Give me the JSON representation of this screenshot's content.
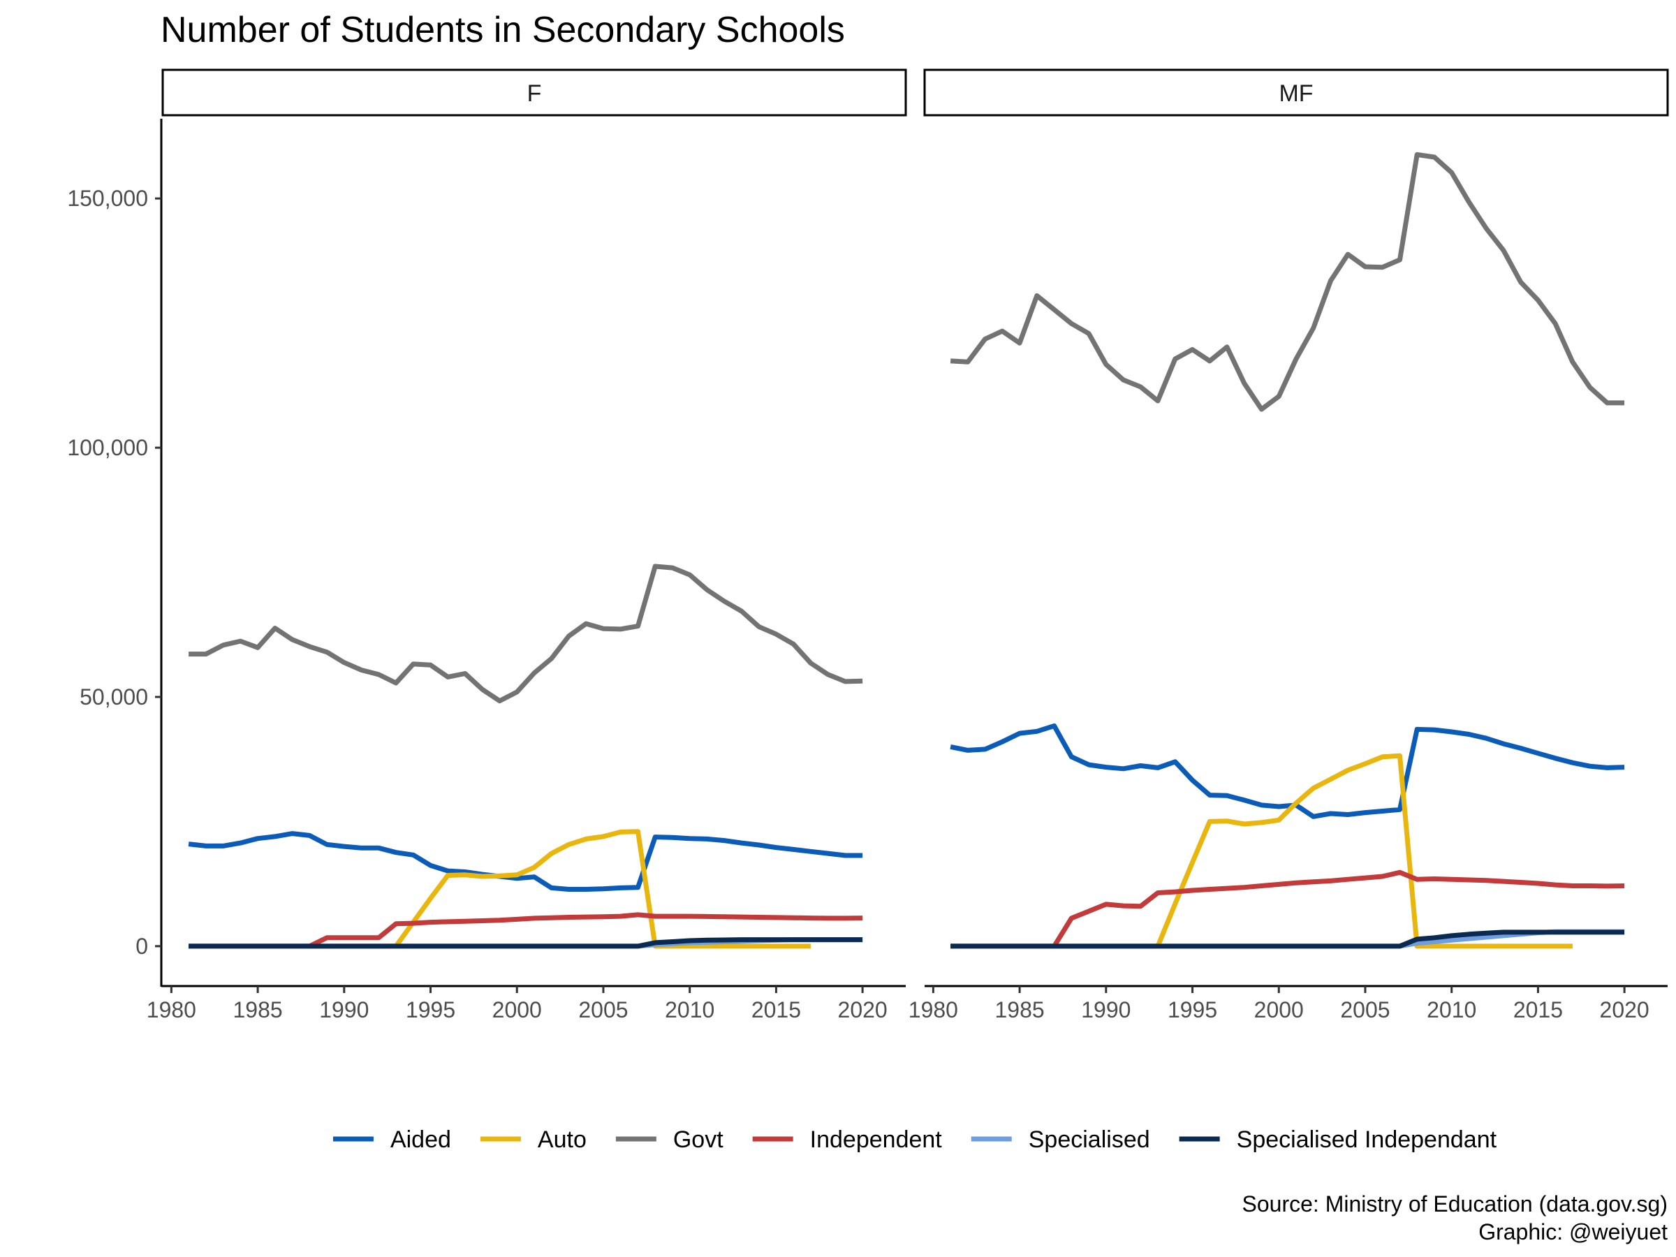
{
  "chart_data": {
    "type": "line",
    "title": "Number of Students in Secondary Schools",
    "xlabel": "",
    "ylabel": "",
    "xlim": [
      1979.5,
      2022.5
    ],
    "ylim": [
      -8000,
      166000
    ],
    "x_ticks": [
      1980,
      1985,
      1990,
      1995,
      2000,
      2005,
      2010,
      2015,
      2020
    ],
    "x_tick_labels": [
      "1980",
      "1985",
      "1990",
      "1995",
      "2000",
      "2005",
      "2010",
      "2015",
      "2020"
    ],
    "y_ticks": [
      0,
      50000,
      100000,
      150000
    ],
    "y_tick_labels": [
      "0",
      "50,000",
      "100,000",
      "150,000"
    ],
    "grid": false,
    "legend_position": "bottom",
    "caption": [
      "Source: Ministry of Education (data.gov.sg)",
      "Graphic: @weiyuet"
    ],
    "facets": [
      "F",
      "MF"
    ],
    "series": [
      {
        "name": "Aided",
        "color": "#0b5cb8",
        "F": {
          "x": [
            1981,
            1982,
            1983,
            1984,
            1985,
            1986,
            1987,
            1988,
            1989,
            1990,
            1991,
            1992,
            1993,
            1994,
            1995,
            1996,
            1997,
            1998,
            1999,
            2000,
            2001,
            2002,
            2003,
            2004,
            2005,
            2006,
            2007,
            2008,
            2009,
            2010,
            2011,
            2012,
            2013,
            2014,
            2015,
            2016,
            2017,
            2018,
            2019,
            2020
          ],
          "y": [
            20500,
            20100,
            20100,
            20700,
            21600,
            22000,
            22600,
            22200,
            20400,
            20000,
            19700,
            19700,
            18800,
            18300,
            16200,
            15100,
            14900,
            14400,
            14000,
            13600,
            13900,
            11700,
            11400,
            11400,
            11500,
            11700,
            11800,
            21900,
            21800,
            21600,
            21500,
            21200,
            20700,
            20300,
            19800,
            19400,
            19000,
            18600,
            18200,
            18200
          ]
        },
        "MF": {
          "x": [
            1981,
            1982,
            1983,
            1984,
            1985,
            1986,
            1987,
            1988,
            1989,
            1990,
            1991,
            1992,
            1993,
            1994,
            1995,
            1996,
            1997,
            1998,
            1999,
            2000,
            2001,
            2002,
            2003,
            2004,
            2005,
            2006,
            2007,
            2008,
            2009,
            2010,
            2011,
            2012,
            2013,
            2014,
            2015,
            2016,
            2017,
            2018,
            2019,
            2020
          ],
          "y": [
            40000,
            39300,
            39500,
            41000,
            42700,
            43100,
            44200,
            38000,
            36400,
            35900,
            35600,
            36200,
            35800,
            37000,
            33300,
            30300,
            30200,
            29300,
            28300,
            28000,
            28300,
            26000,
            26600,
            26400,
            26800,
            27100,
            27400,
            43500,
            43400,
            43000,
            42500,
            41700,
            40600,
            39700,
            38700,
            37700,
            36800,
            36100,
            35800,
            35900
          ]
        }
      },
      {
        "name": "Auto",
        "color": "#e8b60c",
        "F": {
          "x": [
            1981,
            1993,
            1994,
            1995,
            1996,
            1997,
            1998,
            1999,
            2000,
            2001,
            2002,
            2003,
            2004,
            2005,
            2006,
            2007,
            2008,
            2009,
            2010,
            2011,
            2012,
            2013,
            2014,
            2015,
            2016,
            2017
          ],
          "y": [
            0,
            0,
            4800,
            9600,
            14200,
            14300,
            14000,
            14100,
            14300,
            15800,
            18600,
            20400,
            21500,
            22000,
            22900,
            23000,
            0,
            0,
            0,
            0,
            0,
            0,
            0,
            0,
            0,
            0
          ]
        },
        "MF": {
          "x": [
            1981,
            1993,
            1994,
            1995,
            1996,
            1997,
            1998,
            1999,
            2000,
            2001,
            2002,
            2003,
            2004,
            2005,
            2006,
            2007,
            2008,
            2009,
            2010,
            2011,
            2012,
            2013,
            2014,
            2015,
            2016,
            2017
          ],
          "y": [
            0,
            0,
            8500,
            16800,
            25000,
            25100,
            24500,
            24800,
            25300,
            28700,
            31700,
            33500,
            35300,
            36600,
            38000,
            38200,
            0,
            0,
            0,
            0,
            0,
            0,
            0,
            0,
            0,
            0
          ]
        }
      },
      {
        "name": "Govt",
        "color": "#737373",
        "F": {
          "x": [
            1981,
            1982,
            1983,
            1984,
            1985,
            1986,
            1987,
            1988,
            1989,
            1990,
            1991,
            1992,
            1993,
            1994,
            1995,
            1996,
            1997,
            1998,
            1999,
            2000,
            2001,
            2002,
            2003,
            2004,
            2005,
            2006,
            2007,
            2008,
            2009,
            2010,
            2011,
            2012,
            2013,
            2014,
            2015,
            2016,
            2017,
            2018,
            2019,
            2020
          ],
          "y": [
            58600,
            58600,
            60400,
            61200,
            59900,
            63800,
            61500,
            60100,
            59000,
            56900,
            55400,
            54500,
            52800,
            56600,
            56400,
            54000,
            54700,
            51500,
            49200,
            51000,
            54800,
            57700,
            62200,
            64700,
            63700,
            63600,
            64200,
            76200,
            75900,
            74500,
            71500,
            69200,
            67200,
            64100,
            62600,
            60600,
            56800,
            54500,
            53100,
            53200
          ]
        },
        "MF": {
          "x": [
            1981,
            1982,
            1983,
            1984,
            1985,
            1986,
            1987,
            1988,
            1989,
            1990,
            1991,
            1992,
            1993,
            1994,
            1995,
            1996,
            1997,
            1998,
            1999,
            2000,
            2001,
            2002,
            2003,
            2004,
            2005,
            2006,
            2007,
            2008,
            2009,
            2010,
            2011,
            2012,
            2013,
            2014,
            2015,
            2016,
            2017,
            2018,
            2019,
            2020
          ],
          "y": [
            117400,
            117200,
            121800,
            123400,
            121000,
            130500,
            127700,
            124900,
            122900,
            116700,
            113600,
            112200,
            109400,
            117800,
            119700,
            117400,
            120200,
            112900,
            107700,
            110300,
            117800,
            124000,
            133500,
            138800,
            136300,
            136200,
            137700,
            158800,
            158300,
            155200,
            149300,
            144000,
            139600,
            133200,
            129600,
            124900,
            117200,
            112100,
            109000,
            109000
          ]
        }
      },
      {
        "name": "Independent",
        "color": "#c23a3a",
        "F": {
          "x": [
            1981,
            1988,
            1989,
            1990,
            1991,
            1992,
            1993,
            1994,
            1995,
            1996,
            1997,
            1998,
            1999,
            2000,
            2001,
            2002,
            2003,
            2004,
            2005,
            2006,
            2007,
            2008,
            2009,
            2010,
            2011,
            2012,
            2013,
            2014,
            2015,
            2016,
            2017,
            2018,
            2019,
            2020
          ],
          "y": [
            0,
            0,
            1700,
            1700,
            1700,
            1700,
            4500,
            4600,
            4800,
            4900,
            5000,
            5100,
            5200,
            5400,
            5600,
            5700,
            5800,
            5850,
            5900,
            6000,
            6300,
            6000,
            6000,
            6000,
            5950,
            5900,
            5850,
            5800,
            5750,
            5700,
            5650,
            5600,
            5600,
            5650
          ]
        },
        "MF": {
          "x": [
            1981,
            1987,
            1988,
            1989,
            1990,
            1991,
            1992,
            1993,
            1994,
            1995,
            1996,
            1997,
            1998,
            1999,
            2000,
            2001,
            2002,
            2003,
            2004,
            2005,
            2006,
            2007,
            2008,
            2009,
            2010,
            2011,
            2012,
            2013,
            2014,
            2015,
            2016,
            2017,
            2018,
            2019,
            2020
          ],
          "y": [
            0,
            0,
            5600,
            7000,
            8400,
            8100,
            8000,
            10700,
            10900,
            11200,
            11400,
            11600,
            11800,
            12100,
            12400,
            12700,
            12900,
            13100,
            13400,
            13700,
            14000,
            14800,
            13400,
            13500,
            13400,
            13300,
            13200,
            13000,
            12800,
            12600,
            12300,
            12100,
            12100,
            12050,
            12100
          ]
        }
      },
      {
        "name": "Specialised",
        "color": "#6f9ee0",
        "F": {
          "x": [
            1981,
            2007,
            2008,
            2009,
            2010,
            2011,
            2012,
            2013,
            2014,
            2015,
            2016,
            2017,
            2018,
            2019,
            2020
          ],
          "y": [
            0,
            0,
            300,
            500,
            700,
            800,
            900,
            1000,
            1100,
            1200,
            1300,
            1300,
            1300,
            1300,
            1300
          ]
        },
        "MF": {
          "x": [
            1981,
            2007,
            2008,
            2009,
            2010,
            2011,
            2012,
            2013,
            2014,
            2015,
            2016,
            2017,
            2018,
            2019,
            2020
          ],
          "y": [
            0,
            0,
            600,
            900,
            1200,
            1500,
            1800,
            2100,
            2400,
            2700,
            2900,
            2900,
            2900,
            2900,
            2900
          ]
        }
      },
      {
        "name": "Specialised Independant",
        "color": "#0a2a52",
        "F": {
          "x": [
            1981,
            2007,
            2008,
            2009,
            2010,
            2011,
            2012,
            2013,
            2014,
            2015,
            2016,
            2017,
            2018,
            2019,
            2020
          ],
          "y": [
            0,
            0,
            700,
            900,
            1100,
            1200,
            1250,
            1300,
            1300,
            1300,
            1300,
            1300,
            1300,
            1300,
            1300
          ]
        },
        "MF": {
          "x": [
            1981,
            2007,
            2008,
            2009,
            2010,
            2011,
            2012,
            2013,
            2014,
            2015,
            2016,
            2017,
            2018,
            2019,
            2020
          ],
          "y": [
            0,
            0,
            1400,
            1700,
            2100,
            2400,
            2600,
            2800,
            2800,
            2800,
            2800,
            2800,
            2800,
            2800,
            2800
          ]
        }
      }
    ]
  }
}
